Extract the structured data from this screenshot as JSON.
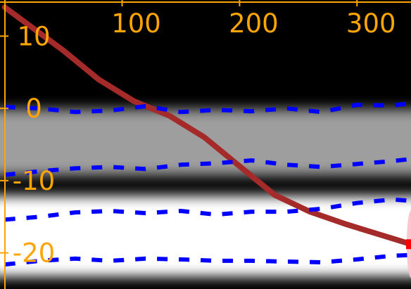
{
  "chart_data": {
    "type": "line",
    "title": "",
    "xlabel": "",
    "ylabel": "",
    "xlim": [
      -4,
      346
    ],
    "ylim": [
      -25,
      15
    ],
    "grid": false,
    "legend": "none",
    "x_ticks": [
      "100",
      "200",
      "300"
    ],
    "y_ticks": [
      "10",
      "0",
      "-10",
      "-20"
    ],
    "series": [
      {
        "style": "solid",
        "color": "#a52a2a",
        "x": [
          0,
          50,
          80,
          110,
          140,
          170,
          200,
          230,
          260,
          290,
          310,
          330,
          346
        ],
        "y": [
          14,
          8,
          4,
          1,
          -1,
          -4,
          -8,
          -12,
          -14.3,
          -16,
          -17,
          -18,
          -18.8
        ]
      },
      {
        "style": "dashed",
        "color": "#0000ff",
        "x": [
          0,
          30,
          60,
          90,
          120,
          150,
          180,
          210,
          240,
          270,
          300,
          330,
          346
        ],
        "y": [
          0.2,
          0,
          -0.5,
          -0.3,
          0.3,
          -0.5,
          -0.2,
          -0.4,
          0,
          -0.5,
          0.5,
          0.4,
          0.7
        ]
      },
      {
        "style": "dashed",
        "color": "#0000ff",
        "x": [
          0,
          30,
          60,
          90,
          120,
          150,
          180,
          210,
          240,
          270,
          300,
          330,
          346
        ],
        "y": [
          -9.2,
          -8.7,
          -8.3,
          -8.1,
          -8.4,
          -7.8,
          -7.6,
          -7.2,
          -7.8,
          -8.1,
          -7.7,
          -7.3,
          -7.0
        ]
      },
      {
        "style": "dashed",
        "color": "#0000ff",
        "x": [
          0,
          30,
          60,
          90,
          120,
          150,
          180,
          210,
          240,
          270,
          300,
          330,
          346
        ],
        "y": [
          -15.4,
          -15,
          -14.4,
          -14.2,
          -14.5,
          -14.2,
          -14.7,
          -14.3,
          -14.3,
          -13.9,
          -13.1,
          -12.6,
          -12.8
        ]
      },
      {
        "style": "dashed",
        "color": "#0000ff",
        "x": [
          0,
          30,
          60,
          90,
          120,
          150,
          180,
          210,
          240,
          270,
          300,
          330,
          346
        ],
        "y": [
          -21.6,
          -21.1,
          -20.8,
          -21.1,
          -20.8,
          -20.9,
          -21.1,
          -21.1,
          -21.2,
          -21.3,
          -20.9,
          -20.4,
          -20.3
        ]
      }
    ],
    "density_bands": [
      {
        "center": -4.7,
        "halfwidth": 4.6,
        "intensity": 0.62
      },
      {
        "center": -17.7,
        "halfwidth": 5.6,
        "intensity": 1.0
      }
    ],
    "marker": {
      "x": 346,
      "y": -18.8,
      "color": "#ff0000"
    },
    "colors": {
      "background": "#000000",
      "axes": "#ffa500",
      "line": "#a52a2a",
      "dashed": "#0000ff",
      "marker_ellipse": "#ffc0cb"
    }
  }
}
